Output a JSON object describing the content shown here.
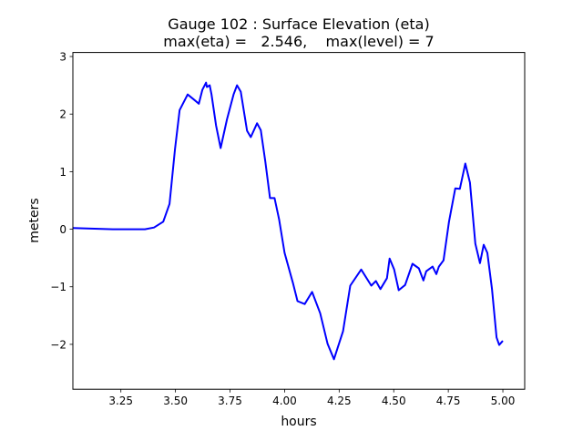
{
  "chart_data": {
    "type": "line",
    "title": "Gauge 102 : Surface Elevation (eta)",
    "subtitle": "max(eta) =   2.546,    max(level) = 7",
    "xlabel": "hours",
    "ylabel": "meters",
    "xlim": [
      3.03,
      5.1
    ],
    "ylim": [
      -2.78,
      3.07
    ],
    "xticks": [
      3.25,
      3.5,
      3.75,
      4.0,
      4.25,
      4.5,
      4.75,
      5.0
    ],
    "xtick_labels": [
      "3.25",
      "3.50",
      "3.75",
      "4.00",
      "4.25",
      "4.50",
      "4.75",
      "5.00"
    ],
    "yticks": [
      -2,
      -1,
      0,
      1,
      2,
      3
    ],
    "ytick_labels": [
      "−2",
      "−1",
      "0",
      "1",
      "2",
      "3"
    ],
    "grid": false,
    "series": [
      {
        "name": "eta",
        "color": "#0000ff",
        "x": [
          3.03,
          3.213,
          3.36,
          3.402,
          3.444,
          3.473,
          3.498,
          3.519,
          3.556,
          3.582,
          3.607,
          3.623,
          3.64,
          3.644,
          3.657,
          3.665,
          3.686,
          3.707,
          3.736,
          3.766,
          3.782,
          3.799,
          3.828,
          3.845,
          3.874,
          3.891,
          3.912,
          3.933,
          3.954,
          3.975,
          4.0,
          4.038,
          4.059,
          4.092,
          4.126,
          4.163,
          4.197,
          4.226,
          4.268,
          4.301,
          4.351,
          4.397,
          4.418,
          4.439,
          4.469,
          4.481,
          4.502,
          4.523,
          4.552,
          4.586,
          4.615,
          4.636,
          4.649,
          4.678,
          4.695,
          4.707,
          4.728,
          4.753,
          4.782,
          4.803,
          4.828,
          4.849,
          4.874,
          4.895,
          4.912,
          4.929,
          4.95,
          4.971,
          4.983,
          5.0
        ],
        "y": [
          0.02,
          0.0,
          0.0,
          0.03,
          0.13,
          0.44,
          1.39,
          2.07,
          2.34,
          2.26,
          2.18,
          2.42,
          2.546,
          2.47,
          2.5,
          2.34,
          1.8,
          1.41,
          1.91,
          2.34,
          2.5,
          2.39,
          1.71,
          1.6,
          1.84,
          1.72,
          1.17,
          0.54,
          0.54,
          0.17,
          -0.41,
          -0.93,
          -1.25,
          -1.3,
          -1.09,
          -1.46,
          -1.99,
          -2.26,
          -1.77,
          -0.98,
          -0.7,
          -0.98,
          -0.9,
          -1.04,
          -0.85,
          -0.51,
          -0.7,
          -1.06,
          -0.97,
          -0.6,
          -0.68,
          -0.89,
          -0.73,
          -0.65,
          -0.78,
          -0.65,
          -0.54,
          0.13,
          0.71,
          0.7,
          1.14,
          0.81,
          -0.25,
          -0.59,
          -0.27,
          -0.41,
          -1.04,
          -1.88,
          -2.01,
          -1.94
        ]
      }
    ]
  }
}
